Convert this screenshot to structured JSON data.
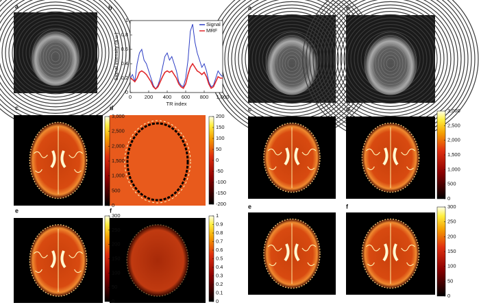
{
  "chart_data": {
    "type": "line",
    "xlabel": "TR index",
    "ylabel": "Signal intensity (a.u.)",
    "xlim": [
      0,
      1000
    ],
    "xticks": [
      0,
      200,
      400,
      600,
      800,
      {
        "value": 1000,
        "label": "1,000"
      }
    ],
    "ylim": [
      0,
      1
    ],
    "yticks": [
      0,
      0.2,
      0.4,
      0.6,
      0.8,
      1
    ],
    "legend": "upper right",
    "x": [
      0,
      25,
      50,
      75,
      100,
      125,
      150,
      175,
      200,
      225,
      250,
      275,
      300,
      325,
      350,
      375,
      400,
      425,
      450,
      475,
      500,
      525,
      550,
      575,
      600,
      625,
      650,
      675,
      700,
      725,
      750,
      775,
      800,
      825,
      850,
      875,
      900,
      925,
      950,
      975,
      1000
    ],
    "series": [
      {
        "name": "Signal",
        "color": "#2b3cc4",
        "values": [
          0.2,
          0.25,
          0.15,
          0.4,
          0.55,
          0.6,
          0.45,
          0.4,
          0.3,
          0.2,
          0.1,
          0.05,
          0.1,
          0.2,
          0.35,
          0.5,
          0.55,
          0.45,
          0.5,
          0.4,
          0.3,
          0.15,
          0.1,
          0.08,
          0.2,
          0.45,
          0.85,
          0.95,
          0.7,
          0.55,
          0.45,
          0.35,
          0.4,
          0.3,
          0.15,
          0.08,
          0.1,
          0.2,
          0.3,
          0.25,
          0.22
        ]
      },
      {
        "name": "MRF",
        "color": "#e0262a",
        "values": [
          0.2,
          0.18,
          0.15,
          0.2,
          0.28,
          0.3,
          0.28,
          0.25,
          0.2,
          0.15,
          0.08,
          0.05,
          0.08,
          0.15,
          0.22,
          0.28,
          0.3,
          0.28,
          0.3,
          0.25,
          0.2,
          0.12,
          0.08,
          0.06,
          0.12,
          0.25,
          0.35,
          0.4,
          0.35,
          0.3,
          0.28,
          0.25,
          0.28,
          0.22,
          0.12,
          0.06,
          0.08,
          0.15,
          0.22,
          0.2,
          0.2
        ]
      }
    ]
  },
  "figure": {
    "panel_labels_left": [
      "a",
      "b",
      "c",
      "d",
      "e",
      "f"
    ],
    "panel_labels_right": [
      "a",
      "b",
      "c",
      "d",
      "e",
      "f"
    ],
    "colorbars": [
      {
        "lim": [
          0,
          3000
        ],
        "ticks": [
          0,
          500,
          {
            "value": 1000,
            "label": "1,000"
          },
          {
            "value": 1500,
            "label": "1,500"
          },
          {
            "value": 2000,
            "label": "2,000"
          },
          {
            "value": 2500,
            "label": "2,500"
          },
          {
            "value": 3000,
            "label": "3,000"
          }
        ]
      },
      {
        "lim": [
          -200,
          200
        ],
        "ticks": [
          -200,
          -150,
          -100,
          -50,
          0,
          50,
          100,
          150,
          200
        ]
      },
      {
        "lim": [
          0,
          300
        ],
        "ticks": [
          0,
          50,
          100,
          150,
          200,
          250,
          300
        ]
      },
      {
        "lim": [
          0,
          1
        ],
        "ticks": [
          0,
          0.1,
          0.2,
          0.3,
          0.4,
          0.5,
          0.6,
          0.7,
          0.8,
          0.9,
          1
        ]
      },
      {
        "lim": [
          0,
          3000
        ],
        "ticks": [
          0,
          500,
          {
            "value": 1000,
            "label": "1,000"
          },
          {
            "value": 1500,
            "label": "1,500"
          },
          {
            "value": 2000,
            "label": "2,000"
          },
          {
            "value": 2500,
            "label": "2,500"
          },
          {
            "value": 3000,
            "label": "3,000"
          }
        ]
      },
      {
        "lim": [
          0,
          300
        ],
        "ticks": [
          0,
          50,
          100,
          150,
          200,
          250,
          300
        ]
      }
    ]
  }
}
